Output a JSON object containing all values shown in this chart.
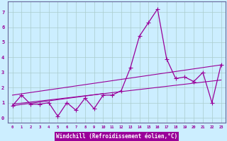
{
  "xlabel": "Windchill (Refroidissement éolien,°C)",
  "bg_color": "#cceeff",
  "line_color": "#990099",
  "grid_color": "#aacccc",
  "spine_color": "#666699",
  "xlim": [
    -0.5,
    23.5
  ],
  "ylim": [
    -0.3,
    7.7
  ],
  "xticks": [
    0,
    1,
    2,
    3,
    4,
    5,
    6,
    7,
    8,
    9,
    10,
    11,
    12,
    13,
    14,
    15,
    16,
    17,
    18,
    19,
    20,
    21,
    22,
    23
  ],
  "yticks": [
    0,
    1,
    2,
    3,
    4,
    5,
    6,
    7
  ],
  "data_x": [
    0,
    1,
    2,
    3,
    4,
    5,
    6,
    7,
    8,
    9,
    10,
    11,
    12,
    13,
    14,
    15,
    16,
    17,
    18,
    19,
    20,
    21,
    22,
    23
  ],
  "data_y": [
    0.8,
    1.5,
    0.9,
    0.9,
    1.0,
    0.1,
    1.0,
    0.5,
    1.3,
    0.6,
    1.5,
    1.5,
    1.8,
    3.3,
    5.4,
    6.3,
    7.2,
    3.9,
    2.6,
    2.7,
    2.4,
    3.0,
    1.0,
    3.5
  ],
  "trend1_x": [
    0,
    23
  ],
  "trend1_y": [
    0.9,
    2.5
  ],
  "trend2_x": [
    0,
    23
  ],
  "trend2_y": [
    1.5,
    3.5
  ],
  "trend3_x": [
    0,
    10
  ],
  "trend3_y": [
    0.8,
    1.6
  ],
  "xlabel_bg": "#990099",
  "xlabel_fg": "#ffffff"
}
